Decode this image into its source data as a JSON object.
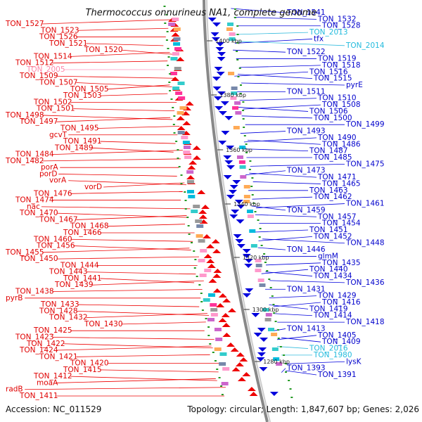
{
  "title": "Thermococcus onnurineus NA1, complete genome",
  "footer": {
    "accession": "Accession: NC_011529",
    "summary": "Topology: circular; Length: 1,847,607 bp; Genes: 2,026"
  },
  "kbp_marks": [
    "1400 kbp",
    "1380 kbp",
    "1360 kbp",
    "1340 kbp",
    "1320 kbp",
    "1300 kbp",
    "1280 kbp"
  ],
  "left_labels": [
    "TON_1527",
    "TON_1523",
    "TON_1526",
    "TON_1521",
    "TON_1520",
    "TON_1514",
    "TON_1512",
    "TON_2005",
    "TON_1509",
    "TON_1507",
    "TON_1505",
    "TON_1503",
    "TON_1502",
    "TON_1501",
    "TON_1498",
    "TON_1497",
    "TON_1495",
    "gcvT",
    "TON_1491",
    "TON_1489",
    "TON_1484",
    "TON_1482",
    "porA",
    "porD",
    "vorA",
    "vorD",
    "TON_1476",
    "TON_1474",
    "nac",
    "TON_1470",
    "TON_1467",
    "TON_1468",
    "TON_1466",
    "TON_1460",
    "TON_1456",
    "TON_1455",
    "TON_1450",
    "TON_1444",
    "TON_1443",
    "TON_1441",
    "TON_1439",
    "TON_1438",
    "pyrB",
    "TON_1433",
    "TON_1428",
    "TON_1432",
    "TON_1430",
    "TON_1425",
    "TON_1423",
    "TON_1422",
    "TON_1424",
    "TON_1421",
    "TON_1420",
    "TON_1415",
    "TON_1412",
    "moaA",
    "radB",
    "TON_1411"
  ],
  "right_labels": [
    "TON_1541",
    "TON_1532",
    "TON_1528",
    "TON_2013",
    "tfx",
    "TON_2014",
    "TON_1522",
    "TON_1519",
    "TON_1518",
    "TON_1516",
    "TON_1515",
    "pyrE",
    "TON_1511",
    "TON_1510",
    "TON_1508",
    "TON_1506",
    "TON_1500",
    "TON_1499",
    "TON_1493",
    "TON_1490",
    "TON_1486",
    "TON_1487",
    "TON_1485",
    "TON_1475",
    "TON_1473",
    "TON_1471",
    "TON_1465",
    "TON_1463",
    "TON_1462",
    "TON_1461",
    "TON_1459",
    "TON_1457",
    "TON_1454",
    "TON_1451",
    "TON_1452",
    "TON_1448",
    "TON_1446",
    "glmM",
    "TON_1435",
    "TON_1440",
    "TON_1434",
    "TON_1436",
    "TON_1431",
    "TON_1429",
    "TON_1416",
    "TON_1419",
    "TON_1414",
    "TON_1418",
    "TON_1413",
    "TON_1405",
    "TON_1409",
    "TON_2016",
    "TON_1980",
    "lysK",
    "TON_1393",
    "TON_1391"
  ],
  "colors": {
    "forward_strand": "#ee0000",
    "reverse_strand": "#0000dd",
    "rna_gene": "#33bbdd",
    "pseudo_gene": "#ff99bb",
    "tick": "#229922",
    "backbone": "#888888"
  }
}
